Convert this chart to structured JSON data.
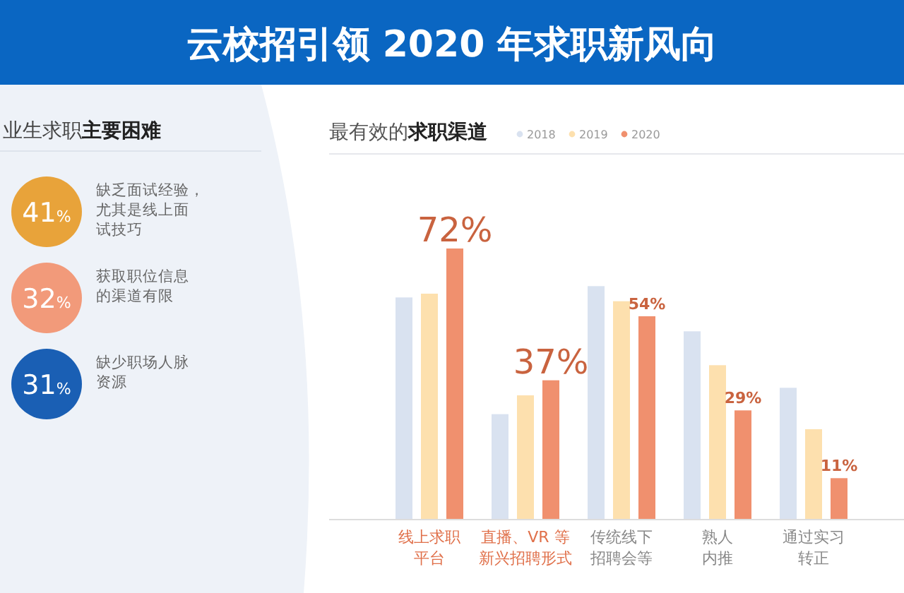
{
  "chart_data": [
    {
      "type": "other",
      "title": "云校招引领 2020 年求职新风向"
    },
    {
      "type": "other",
      "title": "业生求职**主要困难**",
      "categories": [
        "缺乏面试经验，尤其是线上面试技巧",
        "获取职位信息的渠道有限",
        "缺少职场人脉资源"
      ],
      "values": [
        41,
        32,
        31
      ],
      "value_labels": [
        "41%",
        "32%",
        "31%"
      ],
      "colors": [
        "#e8a33a",
        "#f29a7a",
        "#1a5fb4"
      ]
    },
    {
      "type": "bar",
      "title": "最有效的**求职渠道**",
      "legend": "top",
      "categories": [
        "线上求职平台",
        "直播、VR 等新兴招聘形式",
        "传统线下招聘会等",
        "熟人内推",
        "通过实习转正"
      ],
      "series": [
        {
          "name": "2018",
          "color": "#d9e2f0",
          "values": [
            59,
            28,
            62,
            50,
            35
          ]
        },
        {
          "name": "2019",
          "color": "#fde0ae",
          "values": [
            60,
            33,
            58,
            41,
            24
          ]
        },
        {
          "name": "2020",
          "color": "#f0906e",
          "values": [
            72,
            37,
            54,
            29,
            11
          ],
          "value_labels": [
            "72%",
            "37%",
            "54%",
            "29%",
            "11%"
          ]
        }
      ]
    }
  ]
}
